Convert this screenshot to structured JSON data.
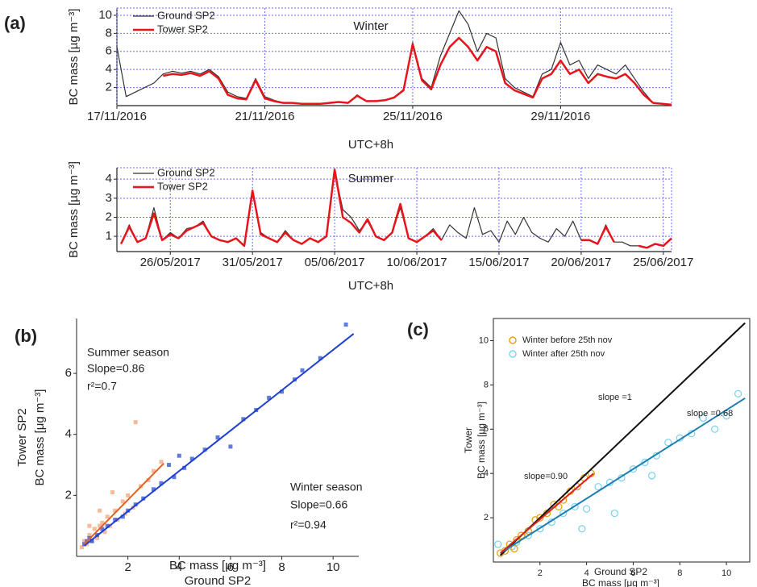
{
  "chart_data": [
    {
      "type": "line",
      "panel_label": "(a)",
      "title": "Winter",
      "x_label": "UTC+8h",
      "y_label": "BC mass [µg m⁻³]",
      "x": [
        "2016-11-17 00:00",
        "2016-11-17 06:00",
        "2016-11-17 12:00",
        "2016-11-17 18:00",
        "2016-11-18 00:00",
        "2016-11-18 06:00",
        "2016-11-18 12:00",
        "2016-11-18 18:00",
        "2016-11-19 00:00",
        "2016-11-19 06:00",
        "2016-11-19 12:00",
        "2016-11-19 18:00",
        "2016-11-20 00:00",
        "2016-11-20 06:00",
        "2016-11-20 12:00",
        "2016-11-20 18:00",
        "2016-11-21 00:00",
        "2016-11-21 06:00",
        "2016-11-21 12:00",
        "2016-11-21 18:00",
        "2016-11-22 00:00",
        "2016-11-22 06:00",
        "2016-11-22 12:00",
        "2016-11-22 18:00",
        "2016-11-23 00:00",
        "2016-11-23 06:00",
        "2016-11-23 12:00",
        "2016-11-23 18:00",
        "2016-11-24 00:00",
        "2016-11-24 06:00",
        "2016-11-24 12:00",
        "2016-11-24 18:00",
        "2016-11-25 00:00",
        "2016-11-25 06:00",
        "2016-11-25 12:00",
        "2016-11-25 18:00",
        "2016-11-26 00:00",
        "2016-11-26 06:00",
        "2016-11-26 12:00",
        "2016-11-26 18:00",
        "2016-11-27 00:00",
        "2016-11-27 06:00",
        "2016-11-27 12:00",
        "2016-11-27 18:00",
        "2016-11-28 00:00",
        "2016-11-28 06:00",
        "2016-11-28 12:00",
        "2016-11-28 18:00",
        "2016-11-29 00:00",
        "2016-11-29 06:00",
        "2016-11-29 12:00",
        "2016-11-29 18:00",
        "2016-11-30 00:00",
        "2016-11-30 06:00",
        "2016-11-30 12:00",
        "2016-11-30 18:00",
        "2016-12-01 00:00",
        "2016-12-01 06:00",
        "2016-12-01 12:00",
        "2016-12-01 18:00",
        "2016-12-02 00:00"
      ],
      "series": [
        {
          "name": "Ground SP2",
          "color": "#333333",
          "width": 1.2,
          "values": [
            6.5,
            1.0,
            1.5,
            2.0,
            2.5,
            3.5,
            3.8,
            3.6,
            3.8,
            3.5,
            4.0,
            3.2,
            1.5,
            1.0,
            0.8,
            3.0,
            1.0,
            0.6,
            0.3,
            0.3,
            0.2,
            0.2,
            0.2,
            0.3,
            0.4,
            0.3,
            1.2,
            0.5,
            0.5,
            0.6,
            0.9,
            1.8,
            7.0,
            3.0,
            2.0,
            5.5,
            8.0,
            10.5,
            9.0,
            6.0,
            8.0,
            7.5,
            3.0,
            2.0,
            1.5,
            1.0,
            3.5,
            4.0,
            7.0,
            4.5,
            5.0,
            3.0,
            4.5,
            4.0,
            3.5,
            4.5,
            3.0,
            1.5,
            0.3,
            0.2,
            0.1
          ]
        },
        {
          "name": "Tower SP2",
          "color": "#e8141b",
          "width": 2.5,
          "values": [
            null,
            null,
            null,
            null,
            null,
            3.3,
            3.5,
            3.4,
            3.6,
            3.3,
            3.8,
            3.0,
            1.2,
            0.8,
            0.7,
            2.8,
            0.8,
            0.5,
            0.3,
            0.3,
            0.2,
            0.2,
            0.2,
            0.3,
            0.4,
            0.3,
            1.1,
            0.5,
            0.5,
            0.6,
            0.9,
            1.7,
            6.8,
            2.8,
            1.8,
            4.5,
            6.5,
            7.5,
            6.5,
            5.0,
            6.5,
            6.0,
            2.5,
            1.7,
            1.3,
            0.9,
            3.0,
            3.5,
            5.0,
            3.5,
            4.0,
            2.5,
            3.5,
            3.2,
            3.0,
            3.5,
            2.5,
            1.2,
            0.3,
            0.2,
            0.1
          ]
        }
      ],
      "xlim": [
        "2016-11-17 00:00",
        "2016-12-02 00:00"
      ],
      "xticks": [
        {
          "value": "2016-11-17 00:00",
          "label": "17/11/2016"
        },
        {
          "value": "2016-11-21 00:00",
          "label": "21/11/2016"
        },
        {
          "value": "2016-11-25 00:00",
          "label": "25/11/2016"
        },
        {
          "value": "2016-11-29 00:00",
          "label": "29/11/2016"
        }
      ],
      "ylim": [
        0,
        10.8
      ],
      "yticks": [
        2,
        4,
        6,
        8,
        10
      ],
      "grid": true
    },
    {
      "type": "line",
      "title": "Summer",
      "x_label": "UTC+8h",
      "y_label": "BC mass [µg m⁻³]",
      "x": [
        "2017-05-23 00:00",
        "2017-05-23 12:00",
        "2017-05-24 00:00",
        "2017-05-24 12:00",
        "2017-05-25 00:00",
        "2017-05-25 12:00",
        "2017-05-26 00:00",
        "2017-05-26 12:00",
        "2017-05-27 00:00",
        "2017-05-27 12:00",
        "2017-05-28 00:00",
        "2017-05-28 12:00",
        "2017-05-29 00:00",
        "2017-05-29 12:00",
        "2017-05-30 00:00",
        "2017-05-30 12:00",
        "2017-05-31 00:00",
        "2017-05-31 12:00",
        "2017-06-01 00:00",
        "2017-06-01 12:00",
        "2017-06-02 00:00",
        "2017-06-02 12:00",
        "2017-06-03 00:00",
        "2017-06-03 12:00",
        "2017-06-04 00:00",
        "2017-06-04 12:00",
        "2017-06-05 00:00",
        "2017-06-05 12:00",
        "2017-06-06 00:00",
        "2017-06-06 12:00",
        "2017-06-07 00:00",
        "2017-06-07 12:00",
        "2017-06-08 00:00",
        "2017-06-08 12:00",
        "2017-06-09 00:00",
        "2017-06-09 12:00",
        "2017-06-10 00:00",
        "2017-06-10 12:00",
        "2017-06-11 00:00",
        "2017-06-11 12:00",
        "2017-06-12 00:00",
        "2017-06-12 12:00",
        "2017-06-13 00:00",
        "2017-06-13 12:00",
        "2017-06-14 00:00",
        "2017-06-14 12:00",
        "2017-06-15 00:00",
        "2017-06-15 12:00",
        "2017-06-16 00:00",
        "2017-06-16 12:00",
        "2017-06-17 00:00",
        "2017-06-17 12:00",
        "2017-06-18 00:00",
        "2017-06-18 12:00",
        "2017-06-19 00:00",
        "2017-06-19 12:00",
        "2017-06-20 00:00",
        "2017-06-20 12:00",
        "2017-06-21 00:00",
        "2017-06-21 12:00",
        "2017-06-22 00:00",
        "2017-06-22 12:00",
        "2017-06-23 00:00",
        "2017-06-23 12:00",
        "2017-06-24 00:00",
        "2017-06-24 12:00",
        "2017-06-25 00:00",
        "2017-06-25 12:00"
      ],
      "series": [
        {
          "name": "Ground SP2",
          "color": "#333333",
          "width": 1.2,
          "values": [
            0.6,
            1.6,
            0.7,
            0.9,
            2.5,
            0.8,
            1.2,
            0.9,
            1.4,
            1.5,
            1.8,
            1.0,
            0.8,
            0.7,
            0.9,
            0.5,
            3.3,
            1.2,
            0.9,
            0.7,
            1.3,
            0.8,
            0.6,
            0.9,
            0.7,
            1.0,
            4.4,
            2.4,
            2.0,
            1.3,
            1.8,
            1.0,
            0.8,
            1.2,
            2.5,
            0.9,
            0.7,
            1.0,
            1.4,
            0.8,
            1.6,
            1.2,
            0.9,
            2.5,
            1.1,
            1.3,
            0.7,
            1.8,
            1.1,
            2.0,
            1.2,
            0.9,
            0.7,
            1.4,
            1.0,
            1.8,
            0.8,
            0.8,
            0.6,
            1.6,
            0.7,
            0.7,
            0.5,
            0.5,
            0.4,
            0.6,
            0.5,
            0.9
          ]
        },
        {
          "name": "Tower SP2",
          "color": "#e8141b",
          "width": 2.5,
          "values": [
            0.6,
            1.5,
            0.7,
            0.9,
            2.2,
            0.8,
            1.1,
            0.9,
            1.3,
            1.5,
            1.7,
            1.0,
            0.8,
            0.7,
            0.9,
            0.5,
            3.4,
            1.1,
            0.9,
            0.7,
            1.2,
            0.8,
            0.6,
            0.9,
            0.7,
            1.0,
            4.5,
            2.0,
            1.7,
            1.2,
            1.9,
            1.0,
            0.8,
            1.2,
            2.7,
            0.9,
            0.7,
            1.0,
            1.3,
            0.8,
            null,
            null,
            null,
            null,
            null,
            null,
            null,
            null,
            null,
            null,
            null,
            null,
            null,
            null,
            null,
            null,
            0.8,
            0.8,
            0.6,
            1.5,
            0.7,
            null,
            null,
            0.5,
            0.4,
            0.6,
            0.5,
            0.9
          ]
        }
      ],
      "xlim": [
        "2017-05-22 18:00",
        "2017-06-25 12:00"
      ],
      "xticks": [
        {
          "value": "2017-05-26 00:00",
          "label": "26/05/2017"
        },
        {
          "value": "2017-05-31 00:00",
          "label": "31/05/2017"
        },
        {
          "value": "2017-06-05 00:00",
          "label": "05/06/2017"
        },
        {
          "value": "2017-06-10 00:00",
          "label": "10/06/2017"
        },
        {
          "value": "2017-06-15 00:00",
          "label": "15/06/2017"
        },
        {
          "value": "2017-06-20 00:00",
          "label": "20/06/2017"
        },
        {
          "value": "2017-06-25 00:00",
          "label": "25/06/2017"
        }
      ],
      "ylim": [
        0.2,
        4.6
      ],
      "yticks": [
        1,
        2,
        3,
        4
      ],
      "grid": true
    },
    {
      "type": "scatter",
      "panel_label": "(b)",
      "x_label": [
        "BC mass [μg m⁻³]",
        "Ground SP2"
      ],
      "y_label": [
        "Tower SP2",
        "BC mass [μg m⁻³]"
      ],
      "series": [
        {
          "color": "#f4a27a",
          "marker": "square",
          "x": [
            0.2,
            0.3,
            0.4,
            0.5,
            0.6,
            0.7,
            0.8,
            0.9,
            1.0,
            1.1,
            1.2,
            1.3,
            1.5,
            1.6,
            1.8,
            2.0,
            2.2,
            2.3,
            2.5,
            2.8,
            3.0,
            3.3,
            0.5,
            0.9,
            1.4,
            1.9
          ],
          "values": [
            0.3,
            0.5,
            0.4,
            0.7,
            0.5,
            0.9,
            0.6,
            1.0,
            1.1,
            0.8,
            1.3,
            1.0,
            1.5,
            1.2,
            1.8,
            2.0,
            1.6,
            4.4,
            2.3,
            2.5,
            2.8,
            3.1,
            1.0,
            1.5,
            2.1,
            1.4
          ]
        },
        {
          "color": "#2a4fd6",
          "marker": "square",
          "x": [
            0.3,
            0.4,
            0.5,
            0.6,
            0.8,
            1.0,
            1.2,
            1.5,
            1.8,
            2.0,
            2.3,
            2.6,
            3.0,
            3.3,
            3.6,
            3.8,
            4.0,
            4.2,
            4.5,
            5.0,
            5.5,
            6.0,
            6.5,
            7.0,
            7.5,
            8.0,
            8.5,
            8.8,
            9.5,
            10.5
          ],
          "values": [
            0.4,
            0.5,
            0.6,
            0.5,
            0.7,
            0.9,
            1.0,
            1.2,
            1.3,
            1.5,
            1.7,
            1.9,
            2.2,
            2.4,
            3.0,
            2.6,
            3.3,
            2.9,
            3.2,
            3.5,
            3.9,
            3.6,
            4.5,
            4.8,
            5.2,
            5.4,
            5.8,
            6.1,
            6.5,
            7.6
          ]
        }
      ],
      "lines": [
        {
          "color": "#1e3fd0",
          "x": [
            0.3,
            10.8
          ],
          "values": [
            0.35,
            7.3
          ]
        },
        {
          "color": "#e8601c",
          "x": [
            0.3,
            3.4
          ],
          "values": [
            0.4,
            3.05
          ]
        }
      ],
      "annotations": [
        {
          "text": "Summer season",
          "color": "#f07030"
        },
        {
          "text": "Slope=0.86",
          "color": "#f07030"
        },
        {
          "text": "r²=0.7",
          "color": "#f07030"
        },
        {
          "text": "Winter season",
          "color": "#2233cc"
        },
        {
          "text": "Slope=0.66",
          "color": "#2233cc"
        },
        {
          "text": "r²=0.94",
          "color": "#2233cc"
        }
      ],
      "xlim": [
        0,
        11
      ],
      "xticks": [
        2,
        4,
        6,
        8,
        10
      ],
      "ylim": [
        0,
        7.8
      ],
      "yticks": [
        2,
        4,
        6
      ],
      "grid": false
    },
    {
      "type": "scatter",
      "panel_label": "(c)",
      "x_label": [
        "Ground SP2",
        "BC mass [μg m⁻³]"
      ],
      "y_label": [
        "Tower",
        "BC mass [μg m⁻³]"
      ],
      "series": [
        {
          "name": "Winter after 25th nov",
          "color": "#7fd6ee",
          "marker": "circle-open",
          "x": [
            0.2,
            0.5,
            0.8,
            1.0,
            1.5,
            2.0,
            2.5,
            3.0,
            3.5,
            4.0,
            4.5,
            5.0,
            5.5,
            6.0,
            6.5,
            7.0,
            7.5,
            8.0,
            8.5,
            9.0,
            9.5,
            10.0,
            10.5,
            3.8,
            5.2,
            6.8
          ],
          "values": [
            0.8,
            0.5,
            0.7,
            0.9,
            1.2,
            1.5,
            1.8,
            2.2,
            2.5,
            2.4,
            3.4,
            3.6,
            3.8,
            4.2,
            4.5,
            4.8,
            5.4,
            5.6,
            5.8,
            6.5,
            6.0,
            6.6,
            7.6,
            1.5,
            2.2,
            3.9
          ]
        },
        {
          "name": "Winter before 25th nov",
          "color": "#e8a317",
          "marker": "circle-open",
          "x": [
            0.3,
            0.5,
            0.7,
            1.0,
            1.2,
            1.5,
            1.8,
            2.0,
            2.3,
            2.6,
            3.0,
            3.3,
            3.6,
            3.9,
            4.2,
            0.9,
            2.8
          ],
          "values": [
            0.4,
            0.5,
            0.8,
            1.0,
            1.2,
            1.4,
            1.9,
            2.0,
            2.2,
            2.6,
            2.8,
            3.2,
            3.4,
            3.8,
            4.0,
            0.6,
            2.5
          ]
        }
      ],
      "lines": [
        {
          "color": "#111111",
          "x": [
            0.3,
            10.8
          ],
          "values": [
            0.3,
            10.8
          ]
        },
        {
          "color": "#1a7fb0",
          "x": [
            0.3,
            10.8
          ],
          "values": [
            0.4,
            7.4
          ]
        },
        {
          "color": "#e0201b",
          "x": [
            0.3,
            4.3
          ],
          "values": [
            0.4,
            4.0
          ]
        }
      ],
      "annotations": [
        {
          "text": "slope =1",
          "color": "#111111"
        },
        {
          "text": "slope=0.90",
          "color": "#e0201b"
        },
        {
          "text": "slope =0.68",
          "color": "#1a7fb0"
        }
      ],
      "xlim": [
        0,
        11
      ],
      "xticks": [
        2,
        4,
        6,
        8,
        10
      ],
      "ylim": [
        0,
        11
      ],
      "yticks": [
        2,
        4,
        6,
        8,
        10
      ],
      "grid": false
    }
  ]
}
